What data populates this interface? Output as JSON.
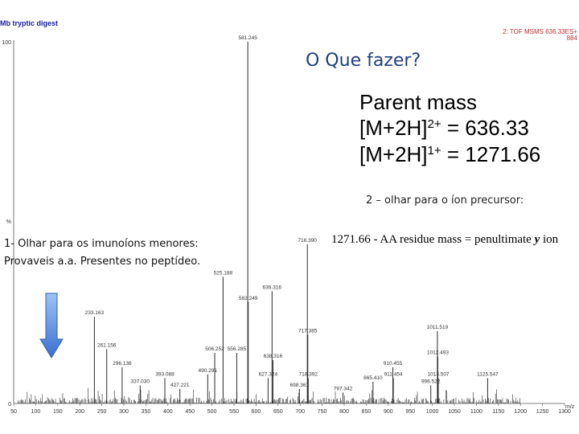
{
  "header": {
    "title": "Mb tryptic digest",
    "right_line1": "2: TOF MSMS 636.33ES+",
    "right_line2": "884"
  },
  "annotations": {
    "question": "O Que fazer?",
    "parent_mass_title": "Parent mass",
    "line2_prefix": "[M+2H]",
    "line2_charge": "2+",
    "line2_value": " = 636.33",
    "line3_prefix": "[M+2H]",
    "line3_charge": "1+",
    "line3_value": " = 1271.66",
    "step2": "2 – olhar para o íon precursor:",
    "formula_text": "1271.66 - AA residue mass = penultimate ",
    "formula_y": "y",
    "formula_end": " ion",
    "step1_line1": "1- Olhar para os imunoíons menores:",
    "step1_line2": "Provaveis a.a. Presentes no peptídeo."
  },
  "colors": {
    "spectrum": "#2a2a2a",
    "label": "#333333",
    "arrow_top": "#9cc3f5",
    "arrow_bottom": "#3b6fcf"
  },
  "chart_data": {
    "type": "bar",
    "xlabel": "m/z",
    "ylabel": "%",
    "xlim": [
      50,
      1300
    ],
    "ylim": [
      0,
      100
    ],
    "y_tick_labels": [
      "0",
      "100"
    ],
    "x_ticks": [
      50,
      100,
      150,
      200,
      250,
      300,
      350,
      400,
      450,
      500,
      550,
      600,
      650,
      700,
      750,
      800,
      850,
      900,
      950,
      1000,
      1050,
      1100,
      1150,
      1200,
      1250,
      1300
    ],
    "peaks": [
      {
        "mz": 581.245,
        "intensity": 100,
        "label": "581.245"
      },
      {
        "mz": 716.39,
        "intensity": 44,
        "label": "716.390"
      },
      {
        "mz": 525.188,
        "intensity": 35,
        "label": "525.188"
      },
      {
        "mz": 636.316,
        "intensity": 31,
        "label": "636.316"
      },
      {
        "mz": 582.249,
        "intensity": 28,
        "label": "582.249"
      },
      {
        "mz": 233.163,
        "intensity": 24,
        "label": "233.163"
      },
      {
        "mz": 717.385,
        "intensity": 19,
        "label": "717.385"
      },
      {
        "mz": 1011.519,
        "intensity": 20,
        "label": "1011.519"
      },
      {
        "mz": 261.156,
        "intensity": 15,
        "label": "261.156"
      },
      {
        "mz": 506.252,
        "intensity": 14,
        "label": "506.252"
      },
      {
        "mz": 556.285,
        "intensity": 14,
        "label": "556.285"
      },
      {
        "mz": 638.316,
        "intensity": 12,
        "label": "638.316"
      },
      {
        "mz": 1012.493,
        "intensity": 13,
        "label": "1012.493"
      },
      {
        "mz": 296.136,
        "intensity": 10,
        "label": "296.136"
      },
      {
        "mz": 910.455,
        "intensity": 10,
        "label": "910.455"
      },
      {
        "mz": 490.291,
        "intensity": 8,
        "label": "490.291"
      },
      {
        "mz": 393.088,
        "intensity": 7,
        "label": "393.088"
      },
      {
        "mz": 627.324,
        "intensity": 7,
        "label": "627.324"
      },
      {
        "mz": 718.392,
        "intensity": 7,
        "label": "718.392"
      },
      {
        "mz": 911.454,
        "intensity": 7,
        "label": "911.454"
      },
      {
        "mz": 1013.507,
        "intensity": 7,
        "label": "1013.507"
      },
      {
        "mz": 1125.547,
        "intensity": 7,
        "label": "1125.547"
      },
      {
        "mz": 865.41,
        "intensity": 6,
        "label": "865.410"
      },
      {
        "mz": 337.03,
        "intensity": 5,
        "label": "337.030"
      },
      {
        "mz": 427.221,
        "intensity": 4,
        "label": "427.221"
      },
      {
        "mz": 698.361,
        "intensity": 4,
        "label": "698.361"
      },
      {
        "mz": 996.522,
        "intensity": 5,
        "label": "996.522"
      },
      {
        "mz": 797.342,
        "intensity": 3,
        "label": "797.342"
      }
    ]
  }
}
